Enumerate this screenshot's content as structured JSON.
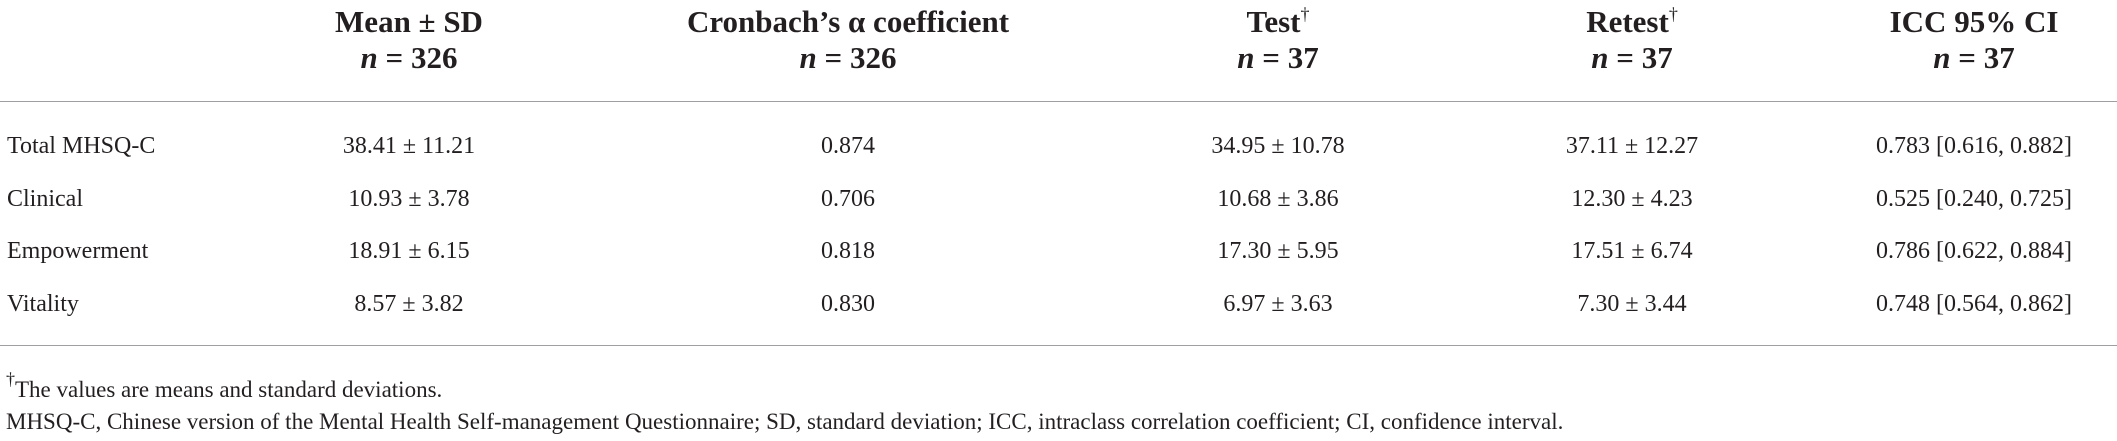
{
  "table": {
    "header": [
      {
        "title": "Mean ± SD",
        "n": "n = 326"
      },
      {
        "title": "Cronbach’s α coefficient",
        "n": "n = 326"
      },
      {
        "title": "Test",
        "mark": "†",
        "n": "n = 37"
      },
      {
        "title": "Retest",
        "mark": "†",
        "n": "n = 37"
      },
      {
        "title": "ICC 95% CI",
        "n": "n = 37"
      }
    ],
    "rows": [
      [
        "Total MHSQ-C",
        "38.41 ± 11.21",
        "0.874",
        "34.95 ± 10.78",
        "37.11 ± 12.27",
        "0.783 [0.616, 0.882]"
      ],
      [
        "Clinical",
        "10.93 ± 3.78",
        "0.706",
        "10.68 ± 3.86",
        "12.30 ± 4.23",
        "0.525 [0.240, 0.725]"
      ],
      [
        "Empowerment",
        "18.91 ± 6.15",
        "0.818",
        "17.30 ± 5.95",
        "17.51 ± 6.74",
        "0.786 [0.622, 0.884]"
      ],
      [
        "Vitality",
        "8.57 ± 3.82",
        "0.830",
        "6.97 ± 3.63",
        "7.30 ± 3.44",
        "0.748 [0.564, 0.862]"
      ]
    ]
  },
  "footnotes": [
    {
      "mark": "†",
      "text": "The values are means and standard deviations."
    },
    {
      "text": "MHSQ-C, Chinese version of the Mental Health Self-management Questionnaire; SD, standard deviation; ICC, intraclass correlation coefficient; CI, confidence interval."
    }
  ]
}
